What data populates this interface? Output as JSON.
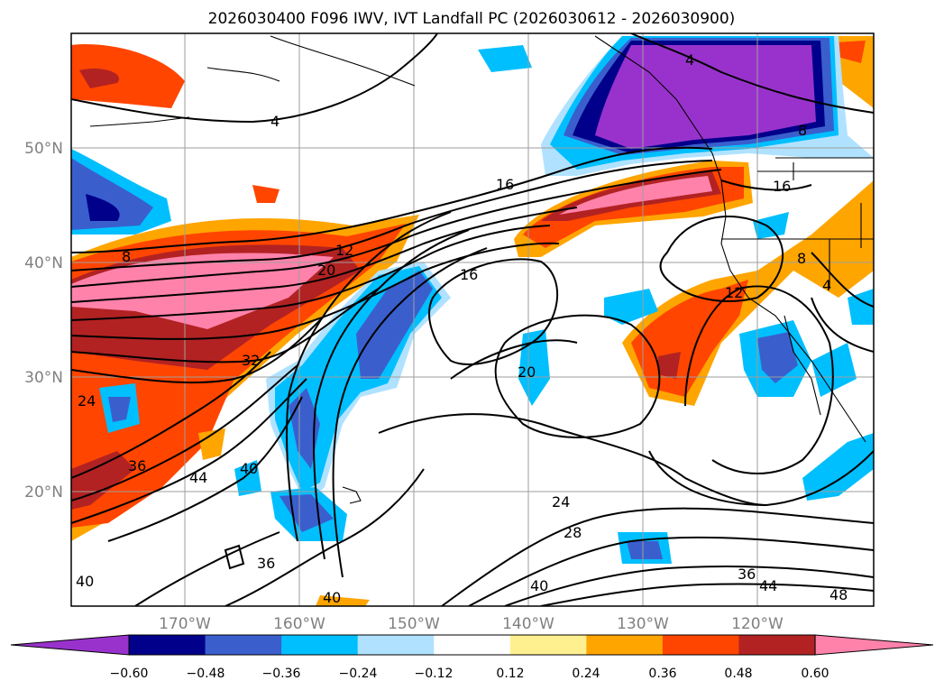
{
  "title": "2026030400 F096 IWV, IVT Landfall PC (2026030612 - 2026030900)",
  "lat_labels": [
    "50°N",
    "40°N",
    "30°N",
    "20°N"
  ],
  "lon_labels": [
    "170°W",
    "160°W",
    "150°W",
    "140°W",
    "130°W",
    "120°W"
  ],
  "colorbar": {
    "tick_labels": [
      "−0.60",
      "−0.48",
      "−0.36",
      "−0.24",
      "−0.12",
      "0.12",
      "0.24",
      "0.36",
      "0.48",
      "0.60"
    ],
    "colors": [
      "#9932cc",
      "#00008b",
      "#3a5fcd",
      "#00bfff",
      "#b0e2ff",
      "#ffffff",
      "#fff08f",
      "#ffa500",
      "#ff4500",
      "#b22222",
      "#ff82ab"
    ]
  },
  "contour_labels": [
    "4",
    "4",
    "8",
    "8",
    "12",
    "16",
    "16",
    "16",
    "20",
    "20",
    "24",
    "24",
    "28",
    "32",
    "36",
    "36",
    "36",
    "40",
    "40",
    "40",
    "40",
    "44",
    "44",
    "48",
    "8",
    "4",
    "12"
  ],
  "map": {
    "lat_range": [
      10,
      60
    ],
    "lon_range": [
      -180,
      -110
    ],
    "gridlines": true
  }
}
